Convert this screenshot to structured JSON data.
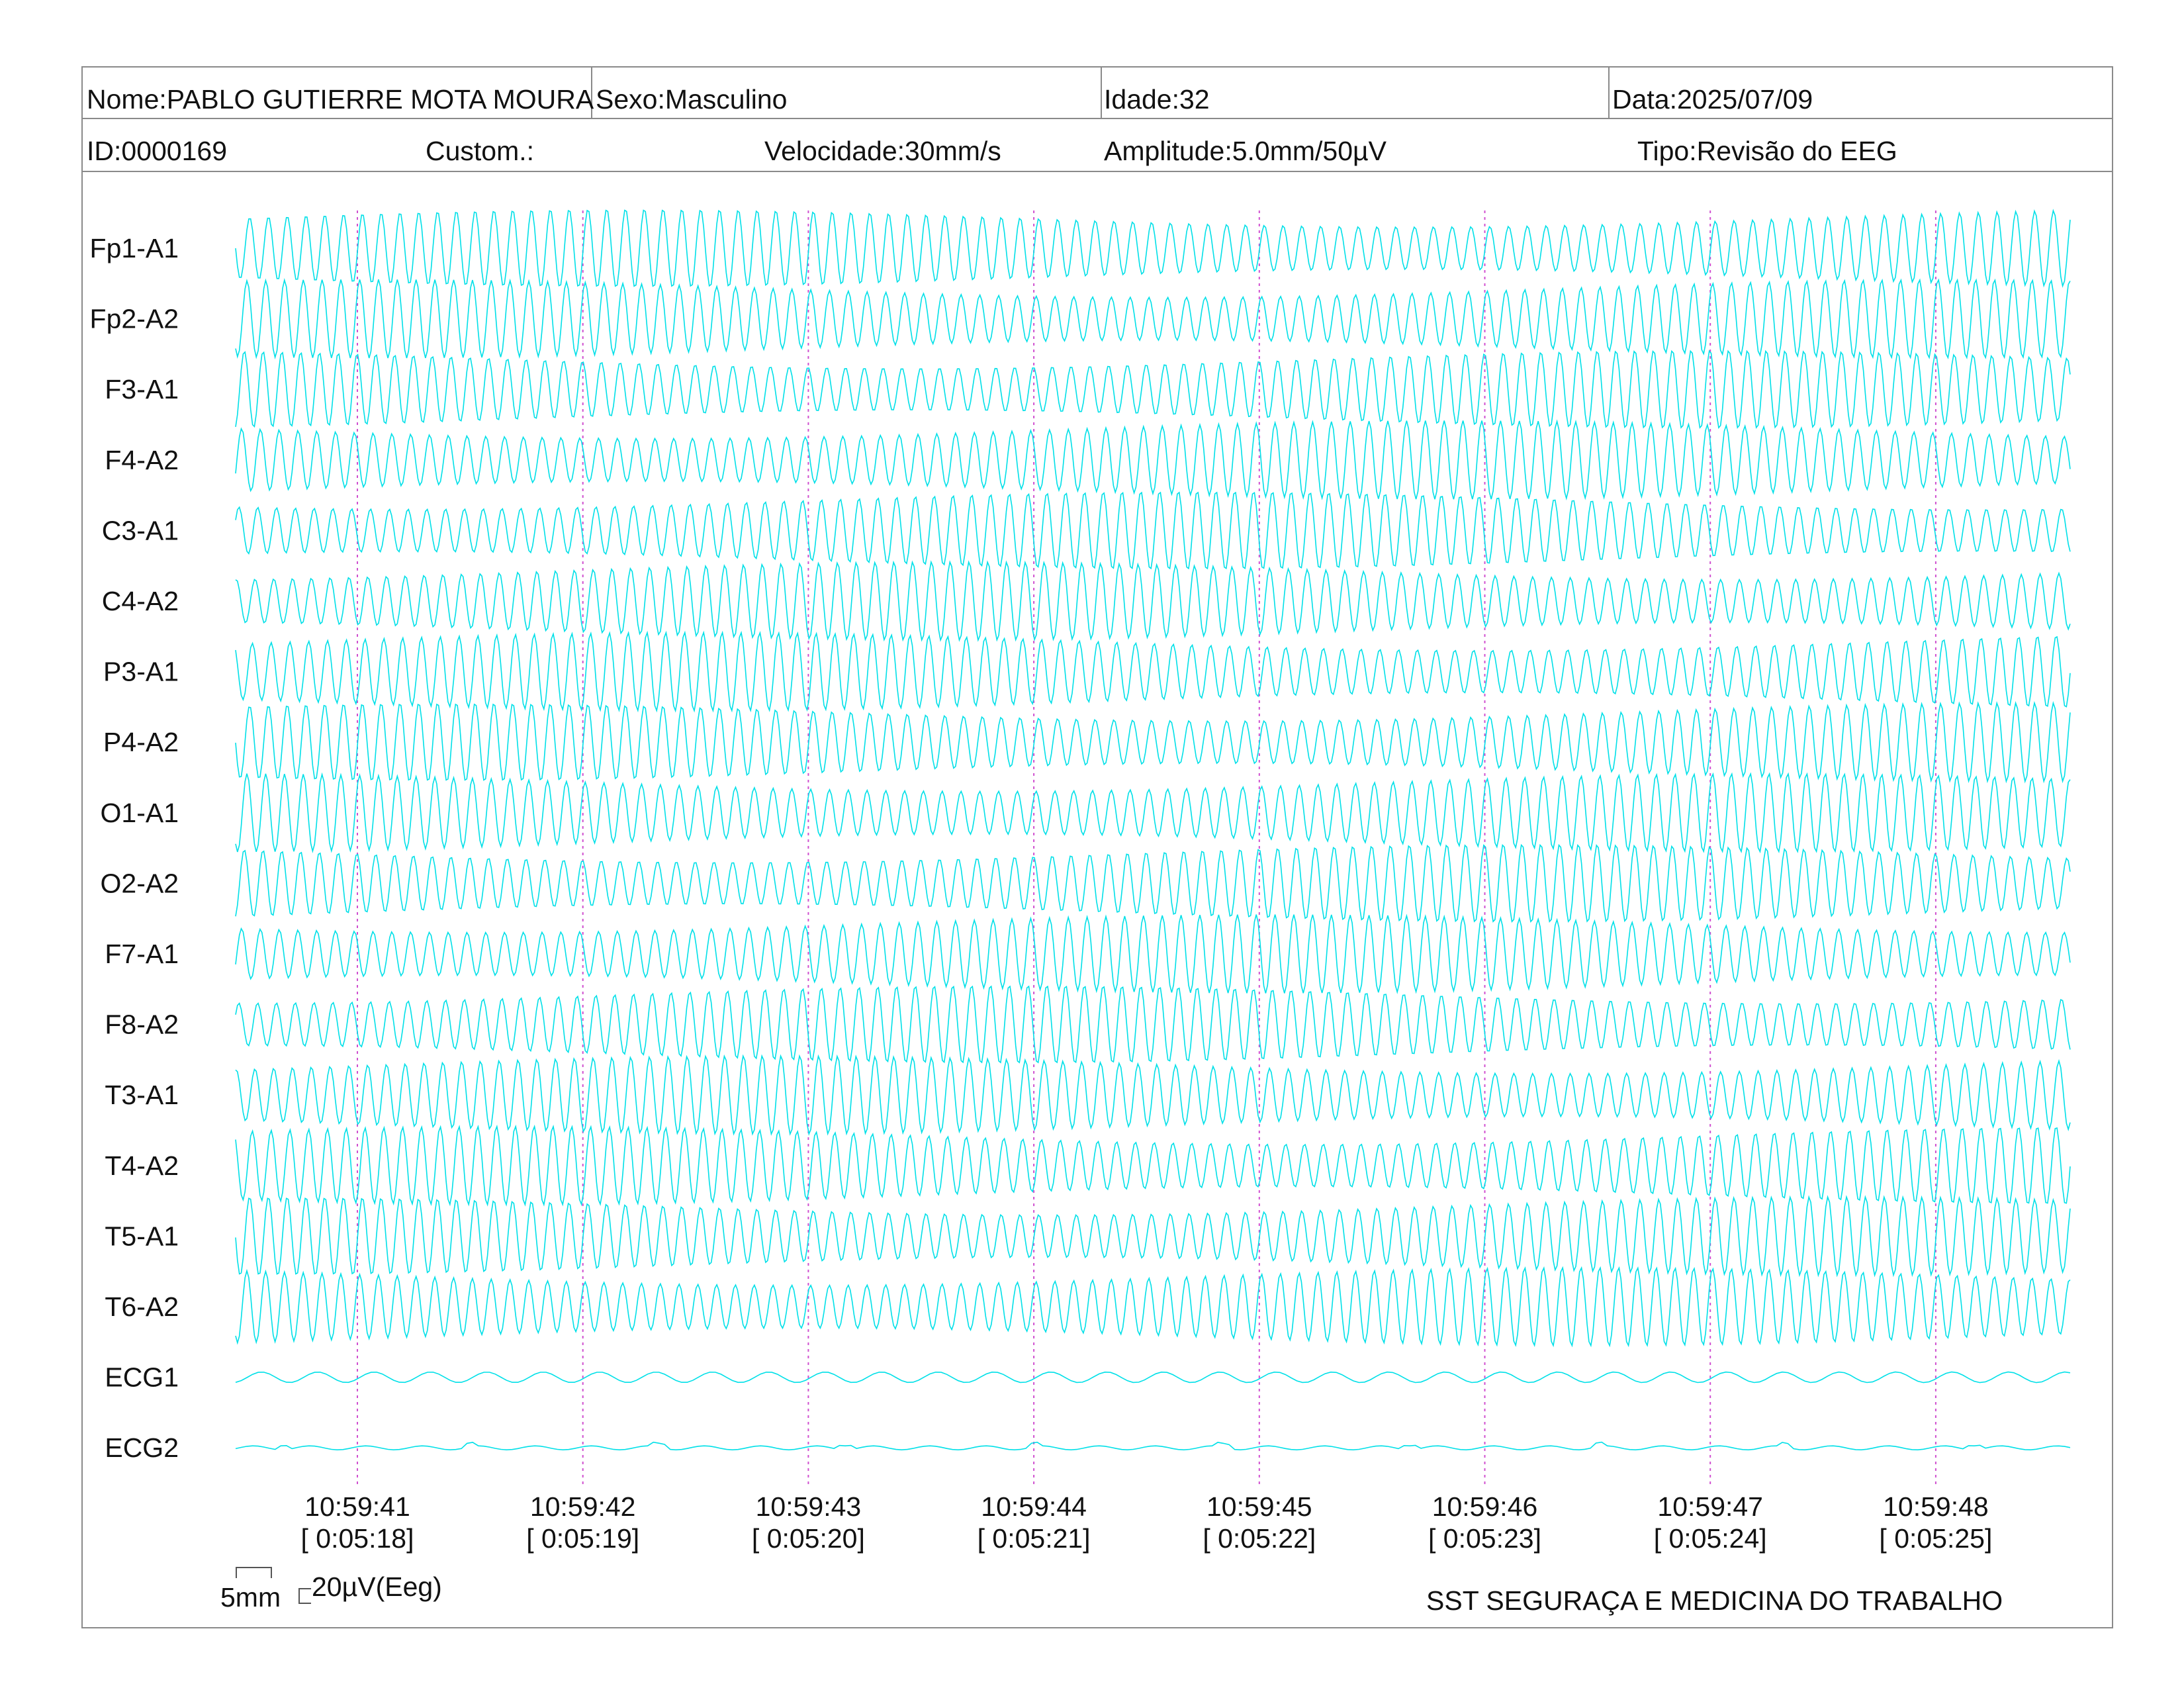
{
  "header": {
    "name": "Nome:PABLO GUTIERRE MOTA MOURA",
    "sex": "Sexo:Masculino",
    "age": "Idade:32",
    "date": "Data:2025/07/09",
    "id": "ID:0000169",
    "custom": "Custom.:",
    "speed": "Velocidade:30mm/s",
    "amplitude": "Amplitude:5.0mm/50µV",
    "type": "Tipo:Revisão do EEG"
  },
  "chart_data": {
    "type": "line",
    "channels": [
      "Fp1-A1",
      "Fp2-A2",
      "F3-A1",
      "F4-A2",
      "C3-A1",
      "C4-A2",
      "P3-A1",
      "P4-A2",
      "O1-A1",
      "O2-A2",
      "F7-A1",
      "F8-A2",
      "T3-A1",
      "T4-A2",
      "T5-A1",
      "T6-A2",
      "ECG1",
      "ECG2"
    ],
    "time_markers": [
      {
        "clock": "10:59:41",
        "elapsed": "[ 0:05:18]"
      },
      {
        "clock": "10:59:42",
        "elapsed": "[ 0:05:19]"
      },
      {
        "clock": "10:59:43",
        "elapsed": "[ 0:05:20]"
      },
      {
        "clock": "10:59:44",
        "elapsed": "[ 0:05:21]"
      },
      {
        "clock": "10:59:45",
        "elapsed": "[ 0:05:22]"
      },
      {
        "clock": "10:59:46",
        "elapsed": "[ 0:05:23]"
      },
      {
        "clock": "10:59:47",
        "elapsed": "[ 0:05:24]"
      },
      {
        "clock": "10:59:48",
        "elapsed": "[ 0:05:25]"
      }
    ],
    "seconds_before_first_marker": 0.54,
    "seconds_after_last_marker": 0.6,
    "eeg_frequency_hz": 12,
    "ecg_frequency_hz": 4,
    "trace_color": "#00e0e8",
    "marker_color": "#d050d0"
  },
  "scale": {
    "time_label": "5mm",
    "amplitude_label": "20µV(Eeg)"
  },
  "footer": {
    "organization": "SST SEGURAÇA E MEDICINA DO TRABALHO"
  }
}
